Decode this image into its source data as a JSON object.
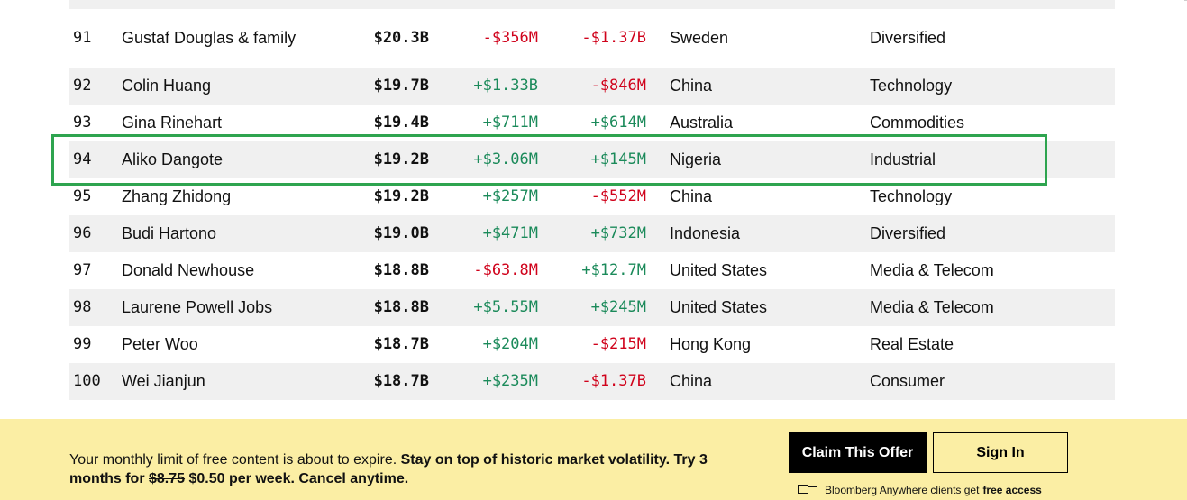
{
  "rows": [
    {
      "rank": "91",
      "name": "Gustaf Douglas & family",
      "net_worth": "$20.3B",
      "last_change": "-$356M",
      "last_dir": "neg",
      "ytd_change": "-$1.37B",
      "ytd_dir": "neg",
      "country": "Sweden",
      "industry": "Diversified"
    },
    {
      "rank": "92",
      "name": "Colin Huang",
      "net_worth": "$19.7B",
      "last_change": "+$1.33B",
      "last_dir": "pos",
      "ytd_change": "-$846M",
      "ytd_dir": "neg",
      "country": "China",
      "industry": "Technology"
    },
    {
      "rank": "93",
      "name": "Gina Rinehart",
      "net_worth": "$19.4B",
      "last_change": "+$711M",
      "last_dir": "pos",
      "ytd_change": "+$614M",
      "ytd_dir": "pos",
      "country": "Australia",
      "industry": "Commodities"
    },
    {
      "rank": "94",
      "name": "Aliko Dangote",
      "net_worth": "$19.2B",
      "last_change": "+$3.06M",
      "last_dir": "pos",
      "ytd_change": "+$145M",
      "ytd_dir": "pos",
      "country": "Nigeria",
      "industry": "Industrial"
    },
    {
      "rank": "95",
      "name": "Zhang Zhidong",
      "net_worth": "$19.2B",
      "last_change": "+$257M",
      "last_dir": "pos",
      "ytd_change": "-$552M",
      "ytd_dir": "neg",
      "country": "China",
      "industry": "Technology"
    },
    {
      "rank": "96",
      "name": "Budi Hartono",
      "net_worth": "$19.0B",
      "last_change": "+$471M",
      "last_dir": "pos",
      "ytd_change": "+$732M",
      "ytd_dir": "pos",
      "country": "Indonesia",
      "industry": "Diversified"
    },
    {
      "rank": "97",
      "name": "Donald Newhouse",
      "net_worth": "$18.8B",
      "last_change": "-$63.8M",
      "last_dir": "neg",
      "ytd_change": "+$12.7M",
      "ytd_dir": "pos",
      "country": "United States",
      "industry": "Media & Telecom"
    },
    {
      "rank": "98",
      "name": "Laurene Powell Jobs",
      "net_worth": "$18.8B",
      "last_change": "+$5.55M",
      "last_dir": "pos",
      "ytd_change": "+$245M",
      "ytd_dir": "pos",
      "country": "United States",
      "industry": "Media & Telecom"
    },
    {
      "rank": "99",
      "name": "Peter Woo",
      "net_worth": "$18.7B",
      "last_change": "+$204M",
      "last_dir": "pos",
      "ytd_change": "-$215M",
      "ytd_dir": "neg",
      "country": "Hong Kong",
      "industry": "Real Estate"
    },
    {
      "rank": "100",
      "name": "Wei Jianjun",
      "net_worth": "$18.7B",
      "last_change": "+$235M",
      "last_dir": "pos",
      "ytd_change": "-$1.37B",
      "ytd_dir": "neg",
      "country": "China",
      "industry": "Consumer"
    }
  ],
  "colors": {
    "positive": "#1b8a5a",
    "negative": "#d0021b",
    "highlight": "#2ea44f",
    "paywall_bg": "#fbeea4"
  },
  "paywall": {
    "msg_plain": "Your monthly limit of free content is about to expire. ",
    "msg_bold": "Stay on top of historic market volatility. Try 3 months for ",
    "old_price": "$8.75",
    "msg_bold_end": " $0.50 per week. Cancel anytime.",
    "claim_label": "Claim This Offer",
    "signin_label": "Sign In",
    "anywhere_text": "Bloomberg Anywhere clients get",
    "anywhere_link": "free access",
    "icon": "terminal-icon"
  }
}
